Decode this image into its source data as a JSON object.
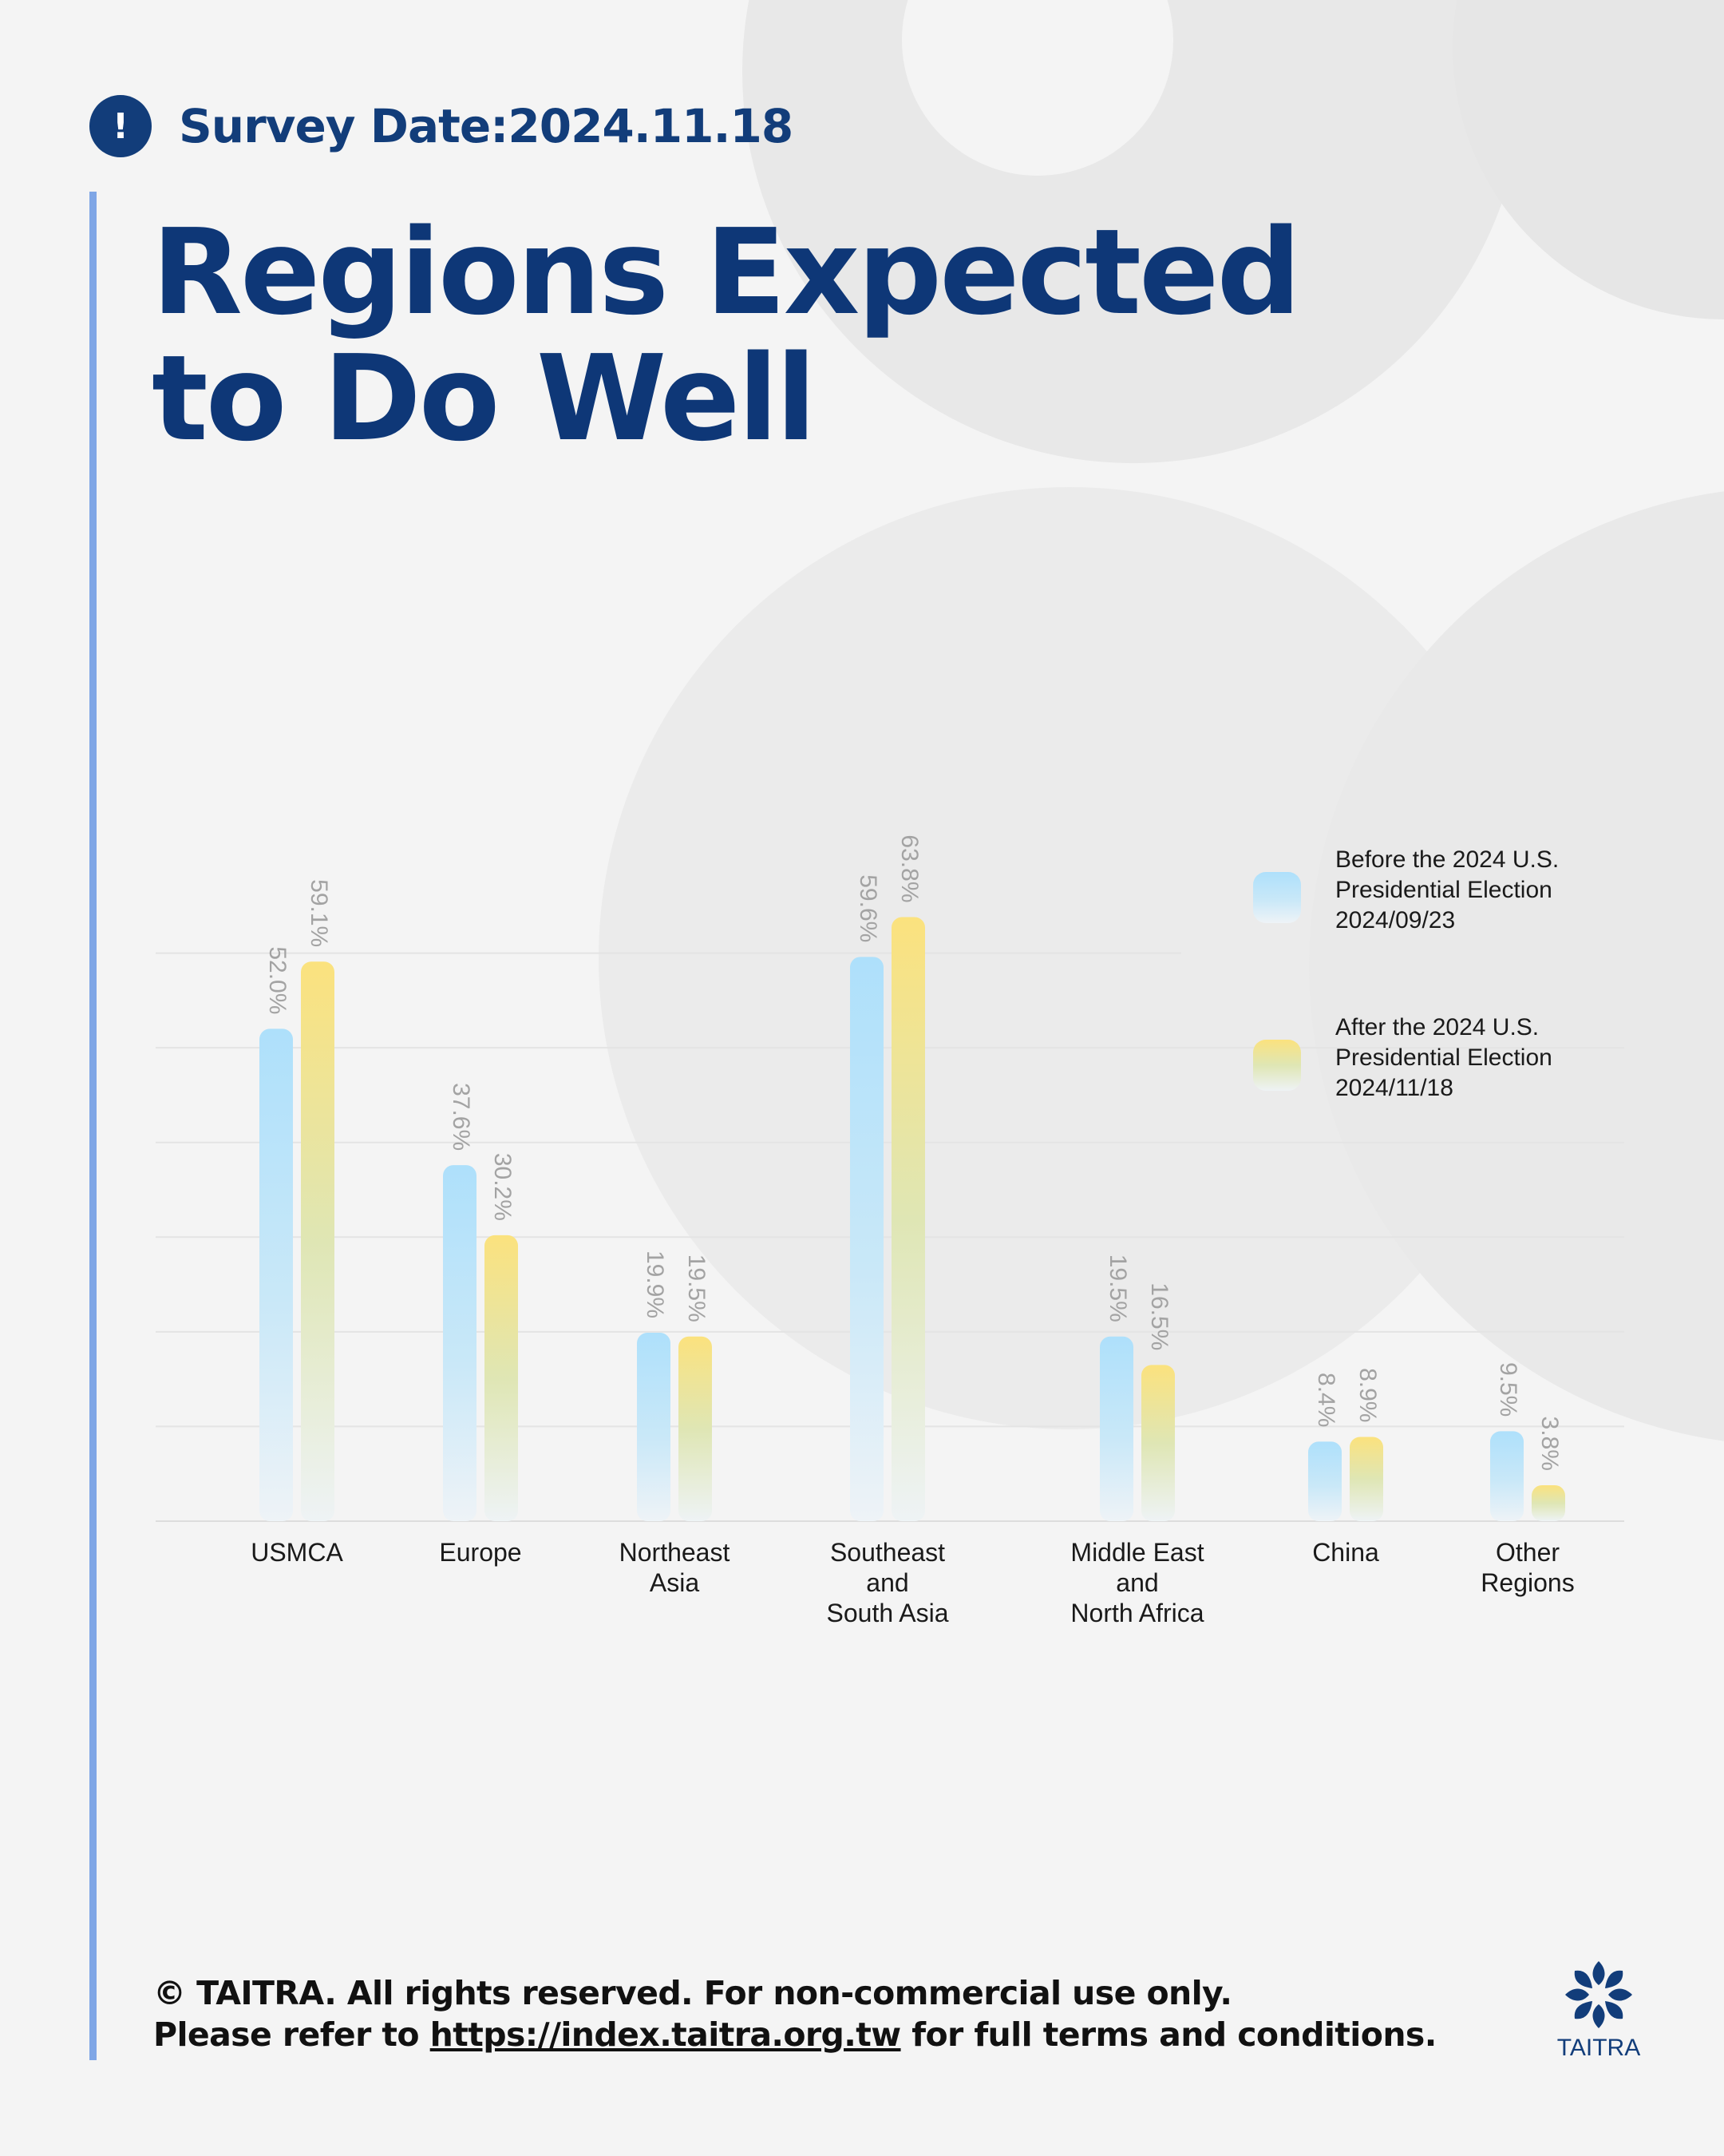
{
  "header": {
    "alert_icon": "!",
    "survey_date": "Survey Date:2024.11.18",
    "title_line1": "Regions Expected",
    "title_line2": "to Do Well"
  },
  "colors": {
    "title": "#0e3777",
    "accent_bar": "#7fa6e6",
    "before_series": "#aee0fb",
    "after_series": "#fbe27e",
    "value_label": "#a3a3a3"
  },
  "chart_data": {
    "type": "bar",
    "categories": [
      "USMCA",
      "Europe",
      "Northeast Asia",
      "Southeast and South Asia",
      "Middle East and North Africa",
      "China",
      "Other Regions"
    ],
    "category_lines": [
      [
        "USMCA"
      ],
      [
        "Europe"
      ],
      [
        "Northeast",
        "Asia"
      ],
      [
        "Southeast",
        "and",
        "South Asia"
      ],
      [
        "Middle East",
        "and",
        "North Africa"
      ],
      [
        "China"
      ],
      [
        "Other",
        "Regions"
      ]
    ],
    "series": [
      {
        "name": "Before the 2024 U.S. Presidential Election 2024/09/23",
        "legend_lines": [
          "Before the 2024 U.S.",
          "Presidential Election",
          "2024/09/23"
        ],
        "values": [
          52.0,
          37.6,
          19.9,
          59.6,
          19.5,
          8.4,
          9.5
        ],
        "labels": [
          "52.0%",
          "37.6%",
          "19.9%",
          "59.6%",
          "19.5%",
          "8.4%",
          "9.5%"
        ]
      },
      {
        "name": "After the 2024 U.S. Presidential Election 2024/11/18",
        "legend_lines": [
          "After the 2024 U.S.",
          "Presidential Election",
          "2024/11/18"
        ],
        "values": [
          59.1,
          30.2,
          19.5,
          63.8,
          16.5,
          8.9,
          3.8
        ],
        "labels": [
          "59.1%",
          "30.2%",
          "19.5%",
          "63.8%",
          "16.5%",
          "8.9%",
          "3.8%"
        ]
      }
    ],
    "ylim": [
      0,
      70
    ],
    "grid": true,
    "legend_position": "top-right",
    "value_labels": "rotated above bars"
  },
  "footer": {
    "copyright": "© TAITRA. All rights reserved. For non-commercial use only.",
    "refer_prefix": "Please refer to ",
    "link_text": "https://index.taitra.org.tw",
    "refer_suffix": " for full terms and conditions."
  },
  "brand": {
    "logo_icon": "taitra-logo-icon",
    "name": "TAITRA"
  }
}
